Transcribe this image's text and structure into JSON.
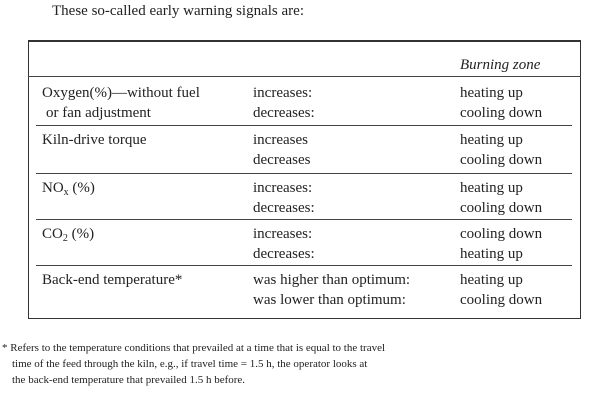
{
  "intro": "These so-called early warning signals are:",
  "table": {
    "header": "Burning zone",
    "rows": [
      {
        "label": [
          "Oxygen(%)—without fuel",
          "or fan adjustment"
        ],
        "changes": [
          "increases:",
          "decreases:"
        ],
        "zone": [
          "heating up",
          "cooling down"
        ]
      },
      {
        "label": [
          "Kiln-drive torque"
        ],
        "changes": [
          "increases",
          "decreases"
        ],
        "zone": [
          "heating up",
          "cooling down"
        ]
      },
      {
        "label": {
          "main": "NO",
          "sub": "x",
          "rest": " (%)"
        },
        "changes": [
          "increases:",
          "decreases:"
        ],
        "zone": [
          "heating up",
          "cooling down"
        ]
      },
      {
        "label": {
          "main": "CO",
          "sub": "2",
          "rest": " (%)"
        },
        "changes": [
          "increases:",
          "decreases:"
        ],
        "zone": [
          "cooling down",
          "heating up"
        ]
      },
      {
        "label": [
          "Back-end temperature*"
        ],
        "changes": [
          "was higher than optimum:",
          "was lower than optimum:"
        ],
        "zone": [
          "heating up",
          "cooling down"
        ]
      }
    ]
  },
  "footnote": [
    "* Refers to the temperature conditions that prevailed at a time that is equal to the travel",
    "time of the feed through the kiln, e.g., if travel time = 1.5 h, the operator looks at",
    "the back-end temperature that prevailed 1.5 h before."
  ]
}
